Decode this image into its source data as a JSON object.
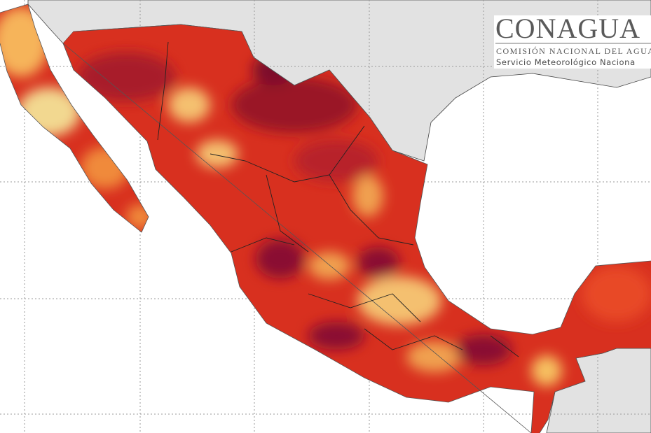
{
  "logo": {
    "name": "CONAGUA",
    "subtitle": "COMISIÓN NACIONAL DEL AGUA",
    "service": "Servicio Meteorológico Naciona"
  }
}
